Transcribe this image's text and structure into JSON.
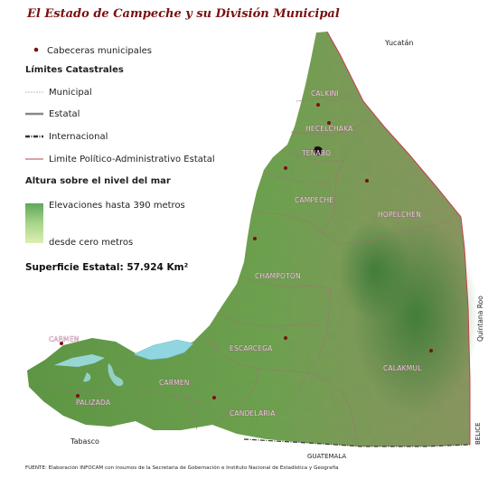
{
  "title": "El Estado de Campeche y su División Municipal",
  "legend": {
    "cabeceras": "Cabeceras municipales",
    "limites_heading": "Límites Catastrales",
    "municipal": "Municipal",
    "estatal": "Estatal",
    "internacional": "Internacional",
    "limite_politico": "Limite Político-Administrativo Estatal",
    "altura_heading": "Altura sobre el nivel del mar",
    "elev_high": "Elevaciones hasta  390 metros",
    "elev_low": "desde cero metros"
  },
  "superficie": "Superficie Estatal: 57.924 Km²",
  "neighbors": {
    "yucatan": "Yucatán",
    "quintana_roo": "Quintana  Roo",
    "belice": "BELICE",
    "guatemala": "GUATEMALA",
    "tabasco": "Tabasco"
  },
  "municipios": {
    "calkini": "CALKINI",
    "hecelchakan": "HECELCHAKA",
    "tenabo": "TENABO",
    "campeche": "CAMPECHE",
    "hopelchen": "HOPELCHEN",
    "champoton": "CHAMPOTON",
    "carmen_n": "CARMEN",
    "escarcega": "ESCARCEGA",
    "carmen_s": "CARMEN",
    "calakmul": "CALAKMUL",
    "palizada": "PALIZADA",
    "candelaria": "CANDELARIA"
  },
  "footer": "FUENTE: Elaboración INFOCAM con insumos de la Secretaria de Gobernación e Instituto Nacional de Estadística y Geografía",
  "colors": {
    "land_low": "#5f9a44",
    "land_high": "#8c9a5e",
    "hills": "#3f7e3a",
    "municipal_border": "#a86a7a",
    "state_border": "#c0404a",
    "seat_dot": "#7a1010",
    "water": "#8fd6e0",
    "title": "#7a1010"
  }
}
